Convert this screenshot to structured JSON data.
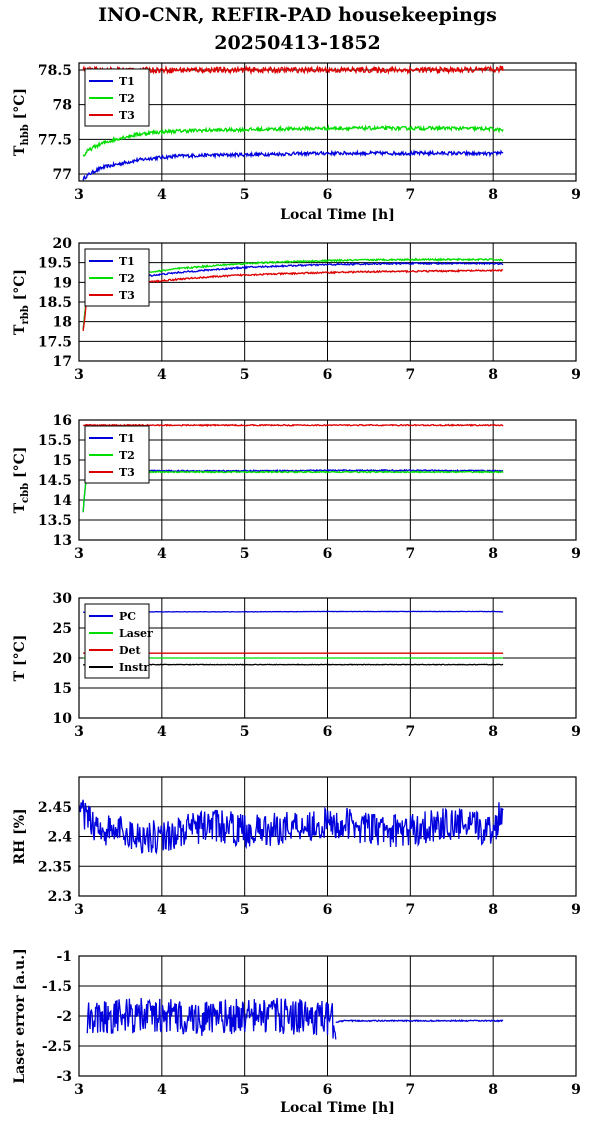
{
  "title": {
    "line1": "INO-CNR, REFIR-PAD housekeepings",
    "line2": "20250413-1852"
  },
  "colors": {
    "blue": "#0000dd",
    "green": "#00dd00",
    "red": "#dd0000",
    "black": "#000000",
    "grid": "#000000"
  },
  "chart_data": [
    {
      "type": "line",
      "ylabel_main": "T",
      "ylabel_sub": "hbb",
      "ylabel_unit": "[°C]",
      "xlabel": "Local Time [h]",
      "xlim": [
        3,
        9
      ],
      "ylim": [
        76.9,
        78.6
      ],
      "xticks": [
        3,
        4,
        5,
        6,
        7,
        8,
        9
      ],
      "yticks": [
        77,
        77.5,
        78,
        78.5
      ],
      "ytick_labels": [
        "77",
        "77.5",
        "78",
        "78.5"
      ],
      "grid": true,
      "legend": "top-left",
      "series": [
        {
          "name": "T1",
          "color": "#0000dd",
          "x": [
            3.05,
            3.1,
            3.2,
            3.3,
            3.5,
            3.7,
            3.9,
            4.2,
            4.5,
            5,
            5.5,
            6,
            6.5,
            7,
            7.5,
            8,
            8.12
          ],
          "y": [
            76.93,
            76.98,
            77.05,
            77.1,
            77.15,
            77.2,
            77.23,
            77.26,
            77.27,
            77.28,
            77.29,
            77.3,
            77.3,
            77.3,
            77.3,
            77.29,
            77.32
          ],
          "noise": 0.025
        },
        {
          "name": "T2",
          "color": "#00dd00",
          "x": [
            3.05,
            3.1,
            3.2,
            3.3,
            3.5,
            3.7,
            3.9,
            4.2,
            4.5,
            5,
            5.5,
            6,
            6.5,
            7,
            7.5,
            8,
            8.12
          ],
          "y": [
            77.25,
            77.33,
            77.4,
            77.45,
            77.52,
            77.57,
            77.6,
            77.62,
            77.63,
            77.64,
            77.65,
            77.66,
            77.66,
            77.66,
            77.66,
            77.65,
            77.63
          ],
          "noise": 0.025
        },
        {
          "name": "T3",
          "color": "#dd0000",
          "x": [
            3.05,
            3.5,
            4,
            5,
            6,
            7,
            8,
            8.12
          ],
          "y": [
            78.5,
            78.5,
            78.5,
            78.5,
            78.5,
            78.5,
            78.5,
            78.52
          ],
          "noise": 0.04
        }
      ]
    },
    {
      "type": "line",
      "ylabel_main": "T",
      "ylabel_sub": "rbb",
      "ylabel_unit": "[°C]",
      "xlabel": "",
      "xlim": [
        3,
        9
      ],
      "ylim": [
        17,
        20
      ],
      "xticks": [
        3,
        4,
        5,
        6,
        7,
        8,
        9
      ],
      "yticks": [
        17,
        17.5,
        18,
        18.5,
        19,
        19.5,
        20
      ],
      "ytick_labels": [
        "17",
        "17.5",
        "18",
        "18.5",
        "19",
        "19.5",
        "20"
      ],
      "grid": true,
      "legend": "top-left",
      "series": [
        {
          "name": "T1",
          "color": "#0000dd",
          "x": [
            3.05,
            3.07,
            3.09,
            3.1,
            3.3,
            3.6,
            3.9,
            4.2,
            4.6,
            5,
            5.5,
            6,
            6.5,
            7,
            7.5,
            8,
            8.12
          ],
          "y": [
            17.8,
            18.2,
            18.6,
            18.9,
            19.05,
            19.12,
            19.18,
            19.25,
            19.32,
            19.38,
            19.42,
            19.45,
            19.47,
            19.48,
            19.48,
            19.48,
            19.46
          ],
          "noise": 0.02
        },
        {
          "name": "T2",
          "color": "#00dd00",
          "x": [
            3.05,
            3.07,
            3.09,
            3.1,
            3.3,
            3.6,
            3.9,
            4.2,
            4.6,
            5,
            5.5,
            6,
            6.5,
            7,
            7.5,
            8,
            8.12
          ],
          "y": [
            17.8,
            18.2,
            18.6,
            18.95,
            19.1,
            19.2,
            19.27,
            19.35,
            19.42,
            19.48,
            19.52,
            19.55,
            19.57,
            19.58,
            19.58,
            19.58,
            19.56
          ],
          "noise": 0.02
        },
        {
          "name": "T3",
          "color": "#dd0000",
          "x": [
            3.05,
            3.07,
            3.09,
            3.1,
            3.3,
            3.6,
            3.9,
            4.2,
            4.6,
            5,
            5.5,
            6,
            6.5,
            7,
            7.5,
            8,
            8.12
          ],
          "y": [
            17.75,
            18.1,
            18.5,
            18.8,
            18.9,
            18.97,
            19.02,
            19.08,
            19.14,
            19.19,
            19.22,
            19.25,
            19.27,
            19.28,
            19.29,
            19.3,
            19.3
          ],
          "noise": 0.02
        }
      ]
    },
    {
      "type": "line",
      "ylabel_main": "T",
      "ylabel_sub": "cbb",
      "ylabel_unit": "[°C]",
      "xlabel": "",
      "xlim": [
        3,
        9
      ],
      "ylim": [
        13,
        16
      ],
      "xticks": [
        3,
        4,
        5,
        6,
        7,
        8,
        9
      ],
      "yticks": [
        13,
        13.5,
        14,
        14.5,
        15,
        15.5,
        16
      ],
      "ytick_labels": [
        "13",
        "13.5",
        "14",
        "14.5",
        "15",
        "15.5",
        "16"
      ],
      "grid": true,
      "legend": "top-left",
      "series": [
        {
          "name": "T1",
          "color": "#0000dd",
          "x": [
            3.05,
            3.07,
            3.09,
            3.1,
            3.3,
            3.6,
            4,
            5,
            6,
            7,
            8,
            8.12
          ],
          "y": [
            13.7,
            14.2,
            14.6,
            14.7,
            14.72,
            14.73,
            14.73,
            14.73,
            14.74,
            14.74,
            14.73,
            14.72
          ],
          "noise": 0.015
        },
        {
          "name": "T2",
          "color": "#00dd00",
          "x": [
            3.05,
            3.07,
            3.09,
            3.1,
            3.3,
            3.6,
            4,
            5,
            6,
            7,
            8,
            8.12
          ],
          "y": [
            13.7,
            14.2,
            14.6,
            14.68,
            14.7,
            14.7,
            14.7,
            14.7,
            14.7,
            14.7,
            14.7,
            14.7
          ],
          "noise": 0.015
        },
        {
          "name": "T3",
          "color": "#dd0000",
          "x": [
            3.05,
            3.5,
            4,
            5,
            6,
            7,
            8,
            8.12
          ],
          "y": [
            15.87,
            15.87,
            15.87,
            15.87,
            15.87,
            15.87,
            15.87,
            15.87
          ],
          "noise": 0.015
        }
      ]
    },
    {
      "type": "line",
      "ylabel_main": "T [°C]",
      "ylabel_sub": "",
      "ylabel_unit": "",
      "xlabel": "",
      "xlim": [
        3,
        9
      ],
      "ylim": [
        10,
        30
      ],
      "xticks": [
        3,
        4,
        5,
        6,
        7,
        8,
        9
      ],
      "yticks": [
        10,
        15,
        20,
        25,
        30
      ],
      "ytick_labels": [
        "10",
        "15",
        "20",
        "25",
        "30"
      ],
      "grid": true,
      "legend": "top-left",
      "series": [
        {
          "name": "PC",
          "color": "#0000dd",
          "x": [
            3.05,
            3.5,
            4,
            5,
            6,
            7,
            8,
            8.12
          ],
          "y": [
            27.6,
            27.65,
            27.7,
            27.7,
            27.75,
            27.75,
            27.75,
            27.7
          ],
          "noise": 0.03
        },
        {
          "name": "Laser",
          "color": "#00dd00",
          "x": [
            3.05,
            4,
            5,
            6,
            7,
            8,
            8.12
          ],
          "y": [
            20,
            20,
            20,
            20,
            20,
            20,
            20
          ],
          "noise": 0.0
        },
        {
          "name": "Det",
          "color": "#dd0000",
          "x": [
            3.05,
            4,
            5,
            6,
            7,
            8,
            8.12
          ],
          "y": [
            20.8,
            20.8,
            20.8,
            20.8,
            20.8,
            20.8,
            20.8
          ],
          "noise": 0.0
        },
        {
          "name": "Instr",
          "color": "#000000",
          "x": [
            3.05,
            4,
            5,
            6,
            7,
            8,
            8.12
          ],
          "y": [
            18.9,
            18.9,
            18.9,
            18.9,
            18.9,
            18.9,
            18.9
          ],
          "noise": 0.05
        }
      ]
    },
    {
      "type": "line",
      "ylabel_main": "RH [%]",
      "ylabel_sub": "",
      "ylabel_unit": "",
      "xlabel": "",
      "xlim": [
        3,
        9
      ],
      "ylim": [
        2.3,
        2.5
      ],
      "xticks": [
        3,
        4,
        5,
        6,
        7,
        8,
        9
      ],
      "yticks": [
        2.3,
        2.35,
        2.4,
        2.45
      ],
      "ytick_labels": [
        "2.3",
        "2.35",
        "2.4",
        "2.45"
      ],
      "grid": true,
      "legend": "none",
      "series": [
        {
          "name": "",
          "color": "#0000dd",
          "x": [
            3.0,
            3.1,
            3.3,
            3.5,
            3.7,
            4,
            4.3,
            4.6,
            5,
            5.3,
            5.6,
            6,
            6.3,
            6.6,
            7,
            7.3,
            7.6,
            8,
            8.12
          ],
          "y": [
            2.44,
            2.43,
            2.41,
            2.41,
            2.4,
            2.4,
            2.41,
            2.42,
            2.41,
            2.41,
            2.42,
            2.42,
            2.42,
            2.41,
            2.41,
            2.42,
            2.42,
            2.41,
            2.45
          ],
          "noise": 0.028
        }
      ]
    },
    {
      "type": "line",
      "ylabel_main": "Laser error [a.u.]",
      "ylabel_sub": "",
      "ylabel_unit": "",
      "xlabel": "Local Time [h]",
      "xlim": [
        3,
        9
      ],
      "ylim": [
        -3,
        -1
      ],
      "xticks": [
        3,
        4,
        5,
        6,
        7,
        8,
        9
      ],
      "yticks": [
        -3,
        -2.5,
        -2,
        -1.5,
        -1
      ],
      "ytick_labels": [
        "-3",
        "-2.5",
        "-2",
        "-1.5",
        "-1"
      ],
      "grid": true,
      "legend": "none",
      "series": [
        {
          "name": "",
          "color": "#0000dd",
          "x": [
            3.1,
            3.5,
            4,
            4.5,
            5,
            5.5,
            6,
            6.1
          ],
          "y": [
            -2.0,
            -2.0,
            -2.0,
            -2.05,
            -2.0,
            -2.0,
            -2.05,
            -2.1
          ],
          "noise": 0.3
        },
        {
          "name": "",
          "color": "#0000dd",
          "x": [
            6.1,
            6.2,
            7,
            8,
            8.12
          ],
          "y": [
            -2.1,
            -2.08,
            -2.08,
            -2.08,
            -2.08
          ],
          "noise": 0.01
        }
      ]
    }
  ]
}
